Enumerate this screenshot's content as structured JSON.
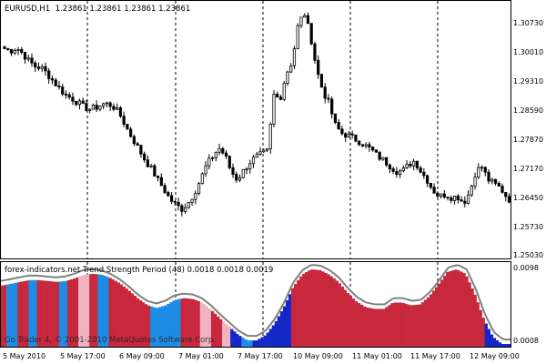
{
  "window": {
    "symbol_timeframe": "EURUSD,H1",
    "ohlc": "1.23861 1.23861 1.23861 1.23861"
  },
  "price_axis": [
    "1.30730",
    "1.30010",
    "1.29310",
    "1.28590",
    "1.27870",
    "1.27170",
    "1.26450",
    "1.25730",
    "1.25030"
  ],
  "indicator": {
    "title": "forex-indicators.net Trend Strength Period (48) 0.0018 0.0018 0.0019",
    "watermark": "Go Trader 4, © 2001-2010 MetaQuotes Software Corp.",
    "axis_top": "0.0098",
    "axis_bottom": "0.0008"
  },
  "time_axis": [
    "5 May 2010",
    "5 May 17:00",
    "6 May 09:00",
    "7 May 01:00",
    "7 May 17:00",
    "10 May 09:00",
    "11 May 01:00",
    "11 May 17:00",
    "12 May 09:00"
  ],
  "colors": {
    "background": "#ffffff",
    "candle": "#000000",
    "grid_dash": "#000000",
    "bar_red": "#c8283c",
    "bar_blue": "#1e8ce6",
    "bar_darkblue": "#1428c8",
    "bar_pink": "#f0b4c0",
    "line_grey": "#808080"
  },
  "chart_data": {
    "type": "candlestick",
    "title": "EURUSD,H1",
    "x_labels": [
      "5 May 2010",
      "5 May 17:00",
      "6 May 09:00",
      "7 May 01:00",
      "7 May 17:00",
      "10 May 09:00",
      "11 May 01:00",
      "11 May 17:00",
      "12 May 09:00"
    ],
    "ylim": [
      1.2489,
      1.3103
    ],
    "close_path": [
      1.299,
      1.2985,
      1.2992,
      1.2978,
      1.296,
      1.2948,
      1.2945,
      1.293,
      1.2912,
      1.2895,
      1.288,
      1.2872,
      1.2862,
      1.2851,
      1.2847,
      1.2851,
      1.2859,
      1.2859,
      1.285,
      1.283,
      1.28,
      1.2775,
      1.275,
      1.2725,
      1.2705,
      1.268,
      1.2658,
      1.2634,
      1.262,
      1.261,
      1.2625,
      1.2648,
      1.268,
      1.2715,
      1.2735,
      1.2755,
      1.2738,
      1.27,
      1.268,
      1.27,
      1.272,
      1.2733,
      1.274,
      1.2748,
      1.288,
      1.287,
      1.293,
      1.296,
      1.305,
      1.3073,
      1.302,
      1.294,
      1.289,
      1.286,
      1.281,
      1.279,
      1.2785,
      1.2778,
      1.277,
      1.276,
      1.275,
      1.2735,
      1.2725,
      1.2712,
      1.27,
      1.27,
      1.2715,
      1.2725,
      1.27,
      1.268,
      1.2655,
      1.264,
      1.2645,
      1.2638,
      1.264,
      1.2625,
      1.265,
      1.27,
      1.271,
      1.268,
      1.267,
      1.266,
      1.264,
      1.2625
    ],
    "indicator": {
      "name": "Trend Strength Period (48)",
      "values_shown": [
        0.0018,
        0.0018,
        0.0019
      ],
      "ylim": [
        0.0008,
        0.0098
      ],
      "envelope": [
        0.0077,
        0.0079,
        0.0081,
        0.0083,
        0.0083,
        0.0082,
        0.0081,
        0.0082,
        0.0085,
        0.0089,
        0.009,
        0.0089,
        0.0085,
        0.0079,
        0.0071,
        0.0062,
        0.0055,
        0.0052,
        0.0055,
        0.0061,
        0.0063,
        0.0062,
        0.0058,
        0.005,
        0.004,
        0.0031,
        0.0022,
        0.0016,
        0.0016,
        0.0022,
        0.0035,
        0.0053,
        0.0075,
        0.0089,
        0.0095,
        0.0094,
        0.0089,
        0.0081,
        0.0069,
        0.0059,
        0.0053,
        0.0051,
        0.0051,
        0.0058,
        0.0058,
        0.0055,
        0.0056,
        0.0065,
        0.0078,
        0.0092,
        0.0095,
        0.009,
        0.0068,
        0.004,
        0.002,
        0.0012,
        0.0012
      ],
      "bar_color_sequence": [
        "red",
        "blue",
        "red",
        "blue",
        "red",
        "red",
        "blue",
        "red",
        "pink",
        "red",
        "blue",
        "red",
        "red",
        "red",
        "red",
        "blue",
        "blue",
        "blue",
        "red",
        "red",
        "pink",
        "red",
        "pink",
        "darkblue",
        "blue",
        "darkblue",
        "darkblue",
        "darkblue",
        "darkblue",
        "red",
        "red",
        "red",
        "red",
        "red",
        "red",
        "red",
        "red",
        "red",
        "red",
        "red",
        "red",
        "red",
        "red",
        "red",
        "red",
        "red",
        "red",
        "red",
        "darkblue",
        "darkblue",
        "darkblue"
      ]
    }
  }
}
